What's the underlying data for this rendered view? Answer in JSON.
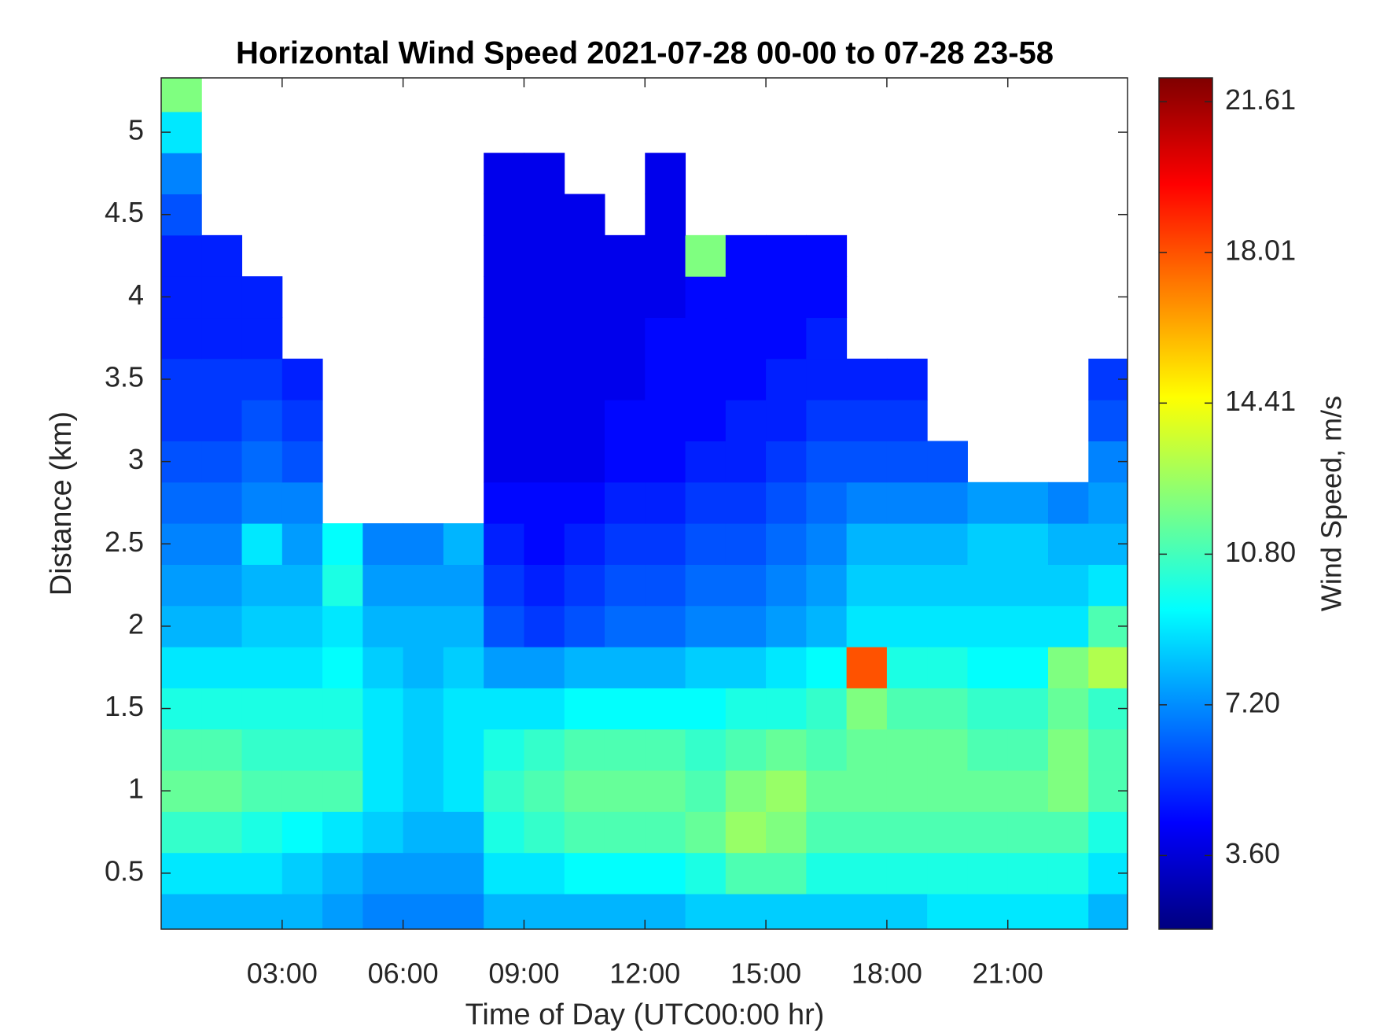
{
  "chart_data": {
    "type": "heatmap",
    "title": "Horizontal Wind Speed 2021-07-28 00-00 to 07-28 23-58",
    "x_label": "Time of Day (UTC00:00 hr)",
    "y_label": "Distance (km)",
    "colorbar_label": "Wind Speed, m/s",
    "colormap": "jet",
    "xlim": [
      0,
      23.97
    ],
    "xticks": [
      {
        "value": 3,
        "label": "03:00"
      },
      {
        "value": 6,
        "label": "06:00"
      },
      {
        "value": 9,
        "label": "09:00"
      },
      {
        "value": 12,
        "label": "12:00"
      },
      {
        "value": 15,
        "label": "15:00"
      },
      {
        "value": 18,
        "label": "18:00"
      },
      {
        "value": 21,
        "label": "21:00"
      }
    ],
    "ylim": [
      0.16,
      5.33
    ],
    "yticks": [
      0.5,
      1,
      1.5,
      2,
      2.5,
      3,
      3.5,
      4,
      4.5,
      5
    ],
    "clim": [
      1.84,
      22.18
    ],
    "cticks": [
      {
        "value": 3.6,
        "label": "3.60"
      },
      {
        "value": 7.2,
        "label": "7.20"
      },
      {
        "value": 10.8,
        "label": "10.80"
      },
      {
        "value": 14.41,
        "label": "14.41"
      },
      {
        "value": 18.01,
        "label": "18.01"
      },
      {
        "value": 21.61,
        "label": "21.61"
      }
    ],
    "x": [
      0.5,
      1.5,
      2.5,
      3.5,
      4.5,
      5.5,
      6.5,
      7.5,
      8.5,
      9.5,
      10.5,
      11.5,
      12.5,
      13.5,
      14.5,
      15.5,
      16.5,
      17.5,
      18.5,
      19.5,
      20.5,
      21.5,
      22.5,
      23.5
    ],
    "y": [
      0.25,
      0.5,
      0.75,
      1,
      1.25,
      1.5,
      1.75,
      2,
      2.25,
      2.5,
      2.75,
      3,
      3.25,
      3.5,
      3.75,
      4,
      4.25,
      4.5,
      4.75,
      5,
      5.25
    ],
    "z": [
      [
        8,
        8,
        8,
        8,
        7.5,
        7,
        7,
        7,
        8,
        8,
        8,
        8,
        8,
        8.5,
        8.5,
        8.5,
        8.5,
        8.5,
        8.5,
        9,
        9,
        9,
        9,
        8
      ],
      [
        9,
        9,
        9,
        8.5,
        8,
        7.5,
        7.5,
        7.5,
        9,
        9,
        9.5,
        9.5,
        9.5,
        10,
        11,
        11,
        10,
        10,
        10,
        10,
        10,
        10,
        10,
        9
      ],
      [
        10.5,
        10.5,
        10,
        9.5,
        9,
        8.5,
        8,
        8,
        10,
        10.5,
        11,
        11,
        11,
        11.5,
        12.5,
        12,
        11,
        11,
        11,
        11,
        11,
        11,
        11,
        10
      ],
      [
        11.5,
        11.5,
        11,
        11,
        11,
        9,
        8.5,
        9,
        10.5,
        11,
        11.5,
        11.5,
        11.5,
        11,
        12,
        12.5,
        11.5,
        11.5,
        11.5,
        11.5,
        11.5,
        11.5,
        12,
        11
      ],
      [
        11,
        11,
        10.5,
        10.5,
        10.5,
        9,
        8.5,
        9,
        10,
        10.5,
        11,
        11,
        11,
        10.5,
        11,
        11.5,
        11,
        11.5,
        11.5,
        11.5,
        11,
        11,
        12,
        11
      ],
      [
        10,
        10,
        10,
        10,
        10,
        9,
        8.5,
        9,
        9,
        9,
        9.5,
        9.5,
        9.5,
        9.5,
        10,
        10,
        10.5,
        12,
        11,
        11,
        10.5,
        10.5,
        11.5,
        10.5
      ],
      [
        9,
        9,
        9,
        9,
        9.5,
        8.5,
        8,
        8.5,
        7.5,
        7.5,
        8,
        8,
        8,
        8.5,
        8.5,
        9,
        9.5,
        18,
        10,
        10,
        9.5,
        9.5,
        12,
        13
      ],
      [
        8,
        8,
        8.5,
        8.5,
        9,
        8,
        8,
        8,
        6,
        5.5,
        6,
        6.5,
        6.5,
        7,
        7,
        7.5,
        8,
        9,
        9,
        9,
        9,
        9,
        9,
        11
      ],
      [
        7.5,
        7.5,
        8,
        8,
        10,
        7.5,
        7.5,
        7.5,
        5.5,
        5,
        5.5,
        6,
        6,
        6.5,
        6.5,
        7,
        7.5,
        8.5,
        8.5,
        8.5,
        8.5,
        8.5,
        8.5,
        9
      ],
      [
        7,
        7,
        9,
        7.5,
        9.5,
        7,
        7,
        8,
        5,
        4.5,
        5,
        5.5,
        5.5,
        6,
        6,
        6.5,
        7,
        8,
        8,
        8,
        8.5,
        8.5,
        8,
        8
      ],
      [
        6.5,
        6.5,
        7,
        7,
        null,
        null,
        null,
        null,
        4.5,
        4.5,
        4.5,
        5,
        5,
        5.5,
        5.5,
        6,
        6.5,
        7,
        7,
        7,
        7.5,
        7.5,
        7,
        7.5
      ],
      [
        6,
        6,
        6.5,
        6,
        null,
        null,
        null,
        null,
        4,
        4,
        4,
        4.5,
        4.5,
        5,
        5,
        5.5,
        6,
        6,
        6,
        6,
        null,
        null,
        null,
        7
      ],
      [
        5.5,
        5.5,
        6,
        5.5,
        null,
        null,
        null,
        null,
        4,
        4,
        4,
        4.5,
        4.5,
        4.5,
        5,
        5,
        5.5,
        5.5,
        5.5,
        null,
        null,
        null,
        null,
        6
      ],
      [
        5.5,
        5.5,
        5.5,
        5,
        null,
        null,
        null,
        null,
        4,
        4,
        4,
        4,
        4.5,
        4.5,
        4.5,
        5,
        5,
        5,
        5,
        null,
        null,
        null,
        null,
        5.5
      ],
      [
        5,
        5,
        5,
        null,
        null,
        null,
        null,
        null,
        4,
        4,
        4,
        4,
        4.5,
        4.5,
        4.5,
        4.5,
        5,
        null,
        null,
        null,
        null,
        null,
        null,
        null
      ],
      [
        5,
        5,
        5,
        null,
        null,
        null,
        null,
        null,
        4,
        4,
        4,
        4,
        4,
        4.5,
        4.5,
        4.5,
        4.5,
        null,
        null,
        null,
        null,
        null,
        null,
        null
      ],
      [
        5,
        5,
        null,
        null,
        null,
        null,
        null,
        null,
        4,
        4,
        4,
        4,
        4,
        12,
        4.5,
        4.5,
        4.5,
        null,
        null,
        null,
        null,
        null,
        null,
        null
      ],
      [
        6,
        null,
        null,
        null,
        null,
        null,
        null,
        null,
        4,
        4,
        4,
        null,
        4,
        null,
        null,
        null,
        null,
        null,
        null,
        null,
        null,
        null,
        null,
        null
      ],
      [
        7,
        null,
        null,
        null,
        null,
        null,
        null,
        null,
        4,
        4,
        null,
        null,
        4,
        null,
        null,
        null,
        null,
        null,
        null,
        null,
        null,
        null,
        null,
        null
      ],
      [
        9,
        null,
        null,
        null,
        null,
        null,
        null,
        null,
        null,
        null,
        null,
        null,
        null,
        null,
        null,
        null,
        null,
        null,
        null,
        null,
        null,
        null,
        null,
        null
      ],
      [
        12,
        null,
        null,
        null,
        null,
        null,
        null,
        null,
        null,
        null,
        null,
        null,
        null,
        null,
        null,
        null,
        null,
        null,
        null,
        null,
        null,
        null,
        null,
        null
      ]
    ]
  }
}
